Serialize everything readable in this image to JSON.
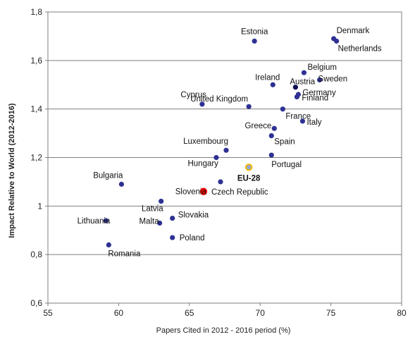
{
  "chart_data": {
    "type": "scatter",
    "xlabel": "Papers Cited in 2012 - 2016 period (%)",
    "ylabel": "Impact Relative to World (2012-2016)",
    "xlim": [
      55,
      80
    ],
    "ylim": [
      0.6,
      1.8
    ],
    "x_ticks": [
      55,
      60,
      65,
      70,
      75,
      80
    ],
    "y_ticks": [
      0.6,
      0.8,
      1.0,
      1.2,
      1.4,
      1.6,
      1.8
    ],
    "x_tick_labels": [
      "55",
      "60",
      "65",
      "70",
      "75",
      "80"
    ],
    "y_tick_labels": [
      "0,6",
      "0,8",
      "1",
      "1,2",
      "1,4",
      "1,6",
      "1,8"
    ],
    "grid": "horizontal",
    "colors": {
      "default": "#2e3192",
      "highlight": "#ff0000",
      "eu": "#f5b800",
      "eu_fill": "#8fa8d8",
      "austria": "#0d0d50"
    },
    "points": [
      {
        "label": "Denmark",
        "x": 75.2,
        "y": 1.69,
        "style": "default",
        "anchor": "start",
        "dx": 4,
        "dy": -8
      },
      {
        "label": "Netherlands",
        "x": 75.4,
        "y": 1.68,
        "style": "default",
        "anchor": "start",
        "dx": 2,
        "dy": 14
      },
      {
        "label": "Estonia",
        "x": 69.6,
        "y": 1.68,
        "style": "default",
        "anchor": "middle",
        "dx": 0,
        "dy": -10
      },
      {
        "label": "Belgium",
        "x": 73.1,
        "y": 1.55,
        "style": "default",
        "anchor": "start",
        "dx": 5,
        "dy": -4
      },
      {
        "label": "Ireland",
        "x": 70.9,
        "y": 1.5,
        "style": "default",
        "anchor": "end",
        "dx": 10,
        "dy": -7
      },
      {
        "label": "Austria",
        "x": 72.5,
        "y": 1.49,
        "style": "austria",
        "anchor": "start",
        "dx": -8,
        "dy": -4
      },
      {
        "label": "Sweden",
        "x": 74.2,
        "y": 1.52,
        "style": "default",
        "anchor": "start",
        "dx": -2,
        "dy": 2
      },
      {
        "label": "Germany",
        "x": 72.7,
        "y": 1.46,
        "style": "default",
        "anchor": "start",
        "dx": 6,
        "dy": 1
      },
      {
        "label": "Finland",
        "x": 72.6,
        "y": 1.45,
        "style": "default",
        "anchor": "start",
        "dx": 7,
        "dy": 5
      },
      {
        "label": "Cyprus",
        "x": 65.9,
        "y": 1.42,
        "style": "default",
        "anchor": "end",
        "dx": 6,
        "dy": -10
      },
      {
        "label": "United Kingdom",
        "x": 69.2,
        "y": 1.41,
        "style": "default",
        "anchor": "end",
        "dx": -1,
        "dy": -7
      },
      {
        "label": "France",
        "x": 71.6,
        "y": 1.4,
        "style": "default",
        "anchor": "start",
        "dx": 4,
        "dy": 14
      },
      {
        "label": "Greece",
        "x": 71.0,
        "y": 1.32,
        "style": "default",
        "anchor": "end",
        "dx": -4,
        "dy": 0
      },
      {
        "label": "Italy",
        "x": 73.0,
        "y": 1.35,
        "style": "default",
        "anchor": "start",
        "dx": 6,
        "dy": 5
      },
      {
        "label": "Spain",
        "x": 70.8,
        "y": 1.29,
        "style": "default",
        "anchor": "start",
        "dx": 4,
        "dy": 12
      },
      {
        "label": "Luxembourg",
        "x": 67.6,
        "y": 1.23,
        "style": "default",
        "anchor": "end",
        "dx": 3,
        "dy": -9
      },
      {
        "label": "Portugal",
        "x": 70.8,
        "y": 1.21,
        "style": "default",
        "anchor": "start",
        "dx": 0,
        "dy": 17
      },
      {
        "label": "Hungary",
        "x": 66.9,
        "y": 1.2,
        "style": "default",
        "anchor": "end",
        "dx": 3,
        "dy": 12
      },
      {
        "label": "EU-28",
        "x": 69.2,
        "y": 1.16,
        "style": "eu",
        "anchor": "middle",
        "dx": 0,
        "dy": 19
      },
      {
        "label": "Bulgaria",
        "x": 60.2,
        "y": 1.09,
        "style": "default",
        "anchor": "end",
        "dx": 2,
        "dy": -9
      },
      {
        "label": "Czech Republic",
        "x": 67.2,
        "y": 1.1,
        "style": "default",
        "anchor": "start",
        "dx": -13,
        "dy": 18
      },
      {
        "label": "Slovenia",
        "x": 66.0,
        "y": 1.06,
        "style": "highlight",
        "anchor": "end",
        "dx": 4,
        "dy": 4
      },
      {
        "label": "Latvia",
        "x": 63.0,
        "y": 1.02,
        "style": "default",
        "anchor": "end",
        "dx": 3,
        "dy": 14
      },
      {
        "label": "Slovakia",
        "x": 63.8,
        "y": 0.95,
        "style": "default",
        "anchor": "start",
        "dx": 8,
        "dy": -1
      },
      {
        "label": "Malta",
        "x": 62.9,
        "y": 0.93,
        "style": "default",
        "anchor": "end",
        "dx": -1,
        "dy": 1
      },
      {
        "label": "Lithuania",
        "x": 59.1,
        "y": 0.94,
        "style": "default",
        "anchor": "end",
        "dx": 6,
        "dy": 4
      },
      {
        "label": "Poland",
        "x": 63.8,
        "y": 0.87,
        "style": "default",
        "anchor": "start",
        "dx": 10,
        "dy": 4
      },
      {
        "label": "Romania",
        "x": 59.3,
        "y": 0.84,
        "style": "default",
        "anchor": "start",
        "dx": -1,
        "dy": 16
      }
    ]
  }
}
